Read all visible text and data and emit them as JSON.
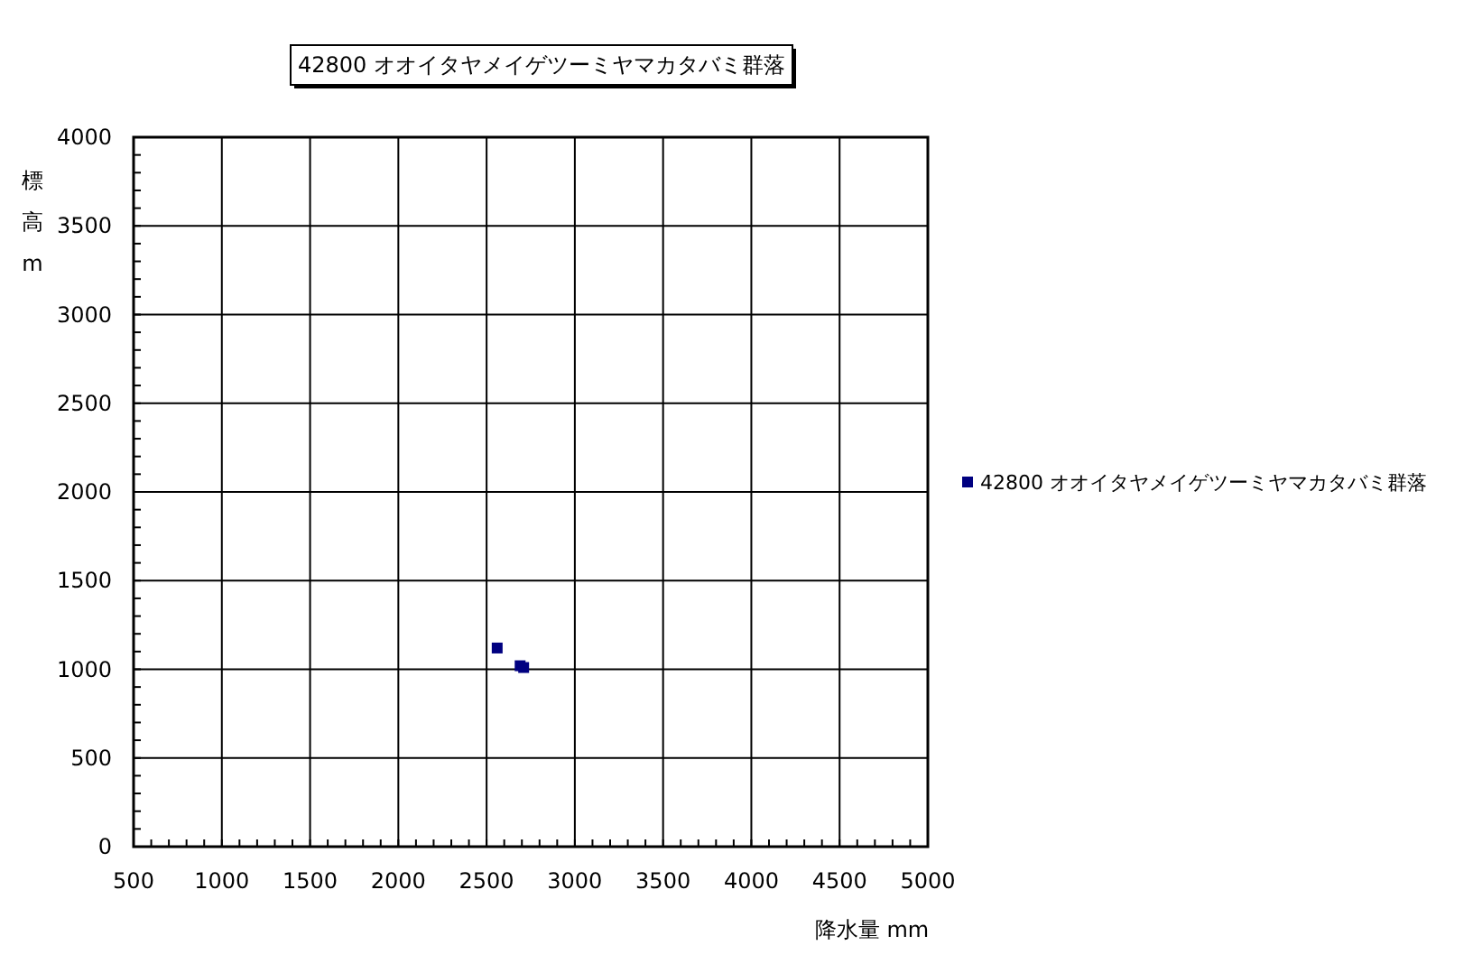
{
  "chart_data": {
    "type": "scatter",
    "title": "42800 オオイタヤメイゲツーミヤマカタバミ群落",
    "xlabel": "降水量 mm",
    "ylabel": "標高m",
    "series": [
      {
        "name": "42800 オオイタヤメイゲツーミヤマカタバミ群落",
        "color": "#000080",
        "x": [
          2560,
          2690,
          2710
        ],
        "values": [
          1120,
          1020,
          1010
        ]
      }
    ],
    "xlim": [
      500,
      5000
    ],
    "xticks": [
      500,
      {
        "value": 600,
        "label": null
      },
      {
        "value": 700,
        "label": null
      },
      {
        "value": 800,
        "label": null
      },
      {
        "value": 900,
        "label": null
      },
      1000,
      {
        "value": 1100,
        "label": null
      },
      {
        "value": 1200,
        "label": null
      },
      {
        "value": 1300,
        "label": null
      },
      {
        "value": 1400,
        "label": null
      },
      1500,
      {
        "value": 1600,
        "label": null
      },
      {
        "value": 1700,
        "label": null
      },
      {
        "value": 1800,
        "label": null
      },
      {
        "value": 1900,
        "label": null
      },
      2000,
      {
        "value": 2100,
        "label": null
      },
      {
        "value": 2200,
        "label": null
      },
      {
        "value": 2300,
        "label": null
      },
      {
        "value": 2400,
        "label": null
      },
      2500,
      {
        "value": 2600,
        "label": null
      },
      {
        "value": 2700,
        "label": null
      },
      {
        "value": 2800,
        "label": null
      },
      {
        "value": 2900,
        "label": null
      },
      3000,
      {
        "value": 3100,
        "label": null
      },
      {
        "value": 3200,
        "label": null
      },
      {
        "value": 3300,
        "label": null
      },
      {
        "value": 3400,
        "label": null
      },
      3500,
      {
        "value": 3600,
        "label": null
      },
      {
        "value": 3700,
        "label": null
      },
      {
        "value": 3800,
        "label": null
      },
      {
        "value": 3900,
        "label": null
      },
      4000,
      {
        "value": 4100,
        "label": null
      },
      {
        "value": 4200,
        "label": null
      },
      {
        "value": 4300,
        "label": null
      },
      {
        "value": 4400,
        "label": null
      },
      4500,
      {
        "value": 4600,
        "label": null
      },
      {
        "value": 4700,
        "label": null
      },
      {
        "value": 4800,
        "label": null
      },
      {
        "value": 4900,
        "label": null
      },
      5000
    ],
    "ylim": [
      0,
      4000
    ],
    "yticks": [
      0,
      {
        "value": 100,
        "label": null
      },
      {
        "value": 200,
        "label": null
      },
      {
        "value": 300,
        "label": null
      },
      {
        "value": 400,
        "label": null
      },
      500,
      {
        "value": 600,
        "label": null
      },
      {
        "value": 700,
        "label": null
      },
      {
        "value": 800,
        "label": null
      },
      {
        "value": 900,
        "label": null
      },
      1000,
      {
        "value": 1100,
        "label": null
      },
      {
        "value": 1200,
        "label": null
      },
      {
        "value": 1300,
        "label": null
      },
      {
        "value": 1400,
        "label": null
      },
      1500,
      {
        "value": 1600,
        "label": null
      },
      {
        "value": 1700,
        "label": null
      },
      {
        "value": 1800,
        "label": null
      },
      {
        "value": 1900,
        "label": null
      },
      2000,
      {
        "value": 2100,
        "label": null
      },
      {
        "value": 2200,
        "label": null
      },
      {
        "value": 2300,
        "label": null
      },
      {
        "value": 2400,
        "label": null
      },
      2500,
      {
        "value": 2600,
        "label": null
      },
      {
        "value": 2700,
        "label": null
      },
      {
        "value": 2800,
        "label": null
      },
      {
        "value": 2900,
        "label": null
      },
      3000,
      {
        "value": 3100,
        "label": null
      },
      {
        "value": 3200,
        "label": null
      },
      {
        "value": 3300,
        "label": null
      },
      {
        "value": 3400,
        "label": null
      },
      3500,
      {
        "value": 3600,
        "label": null
      },
      {
        "value": 3700,
        "label": null
      },
      {
        "value": 3800,
        "label": null
      },
      {
        "value": 3900,
        "label": null
      },
      4000
    ],
    "grid": true,
    "legend": "right",
    "marker": "square"
  }
}
